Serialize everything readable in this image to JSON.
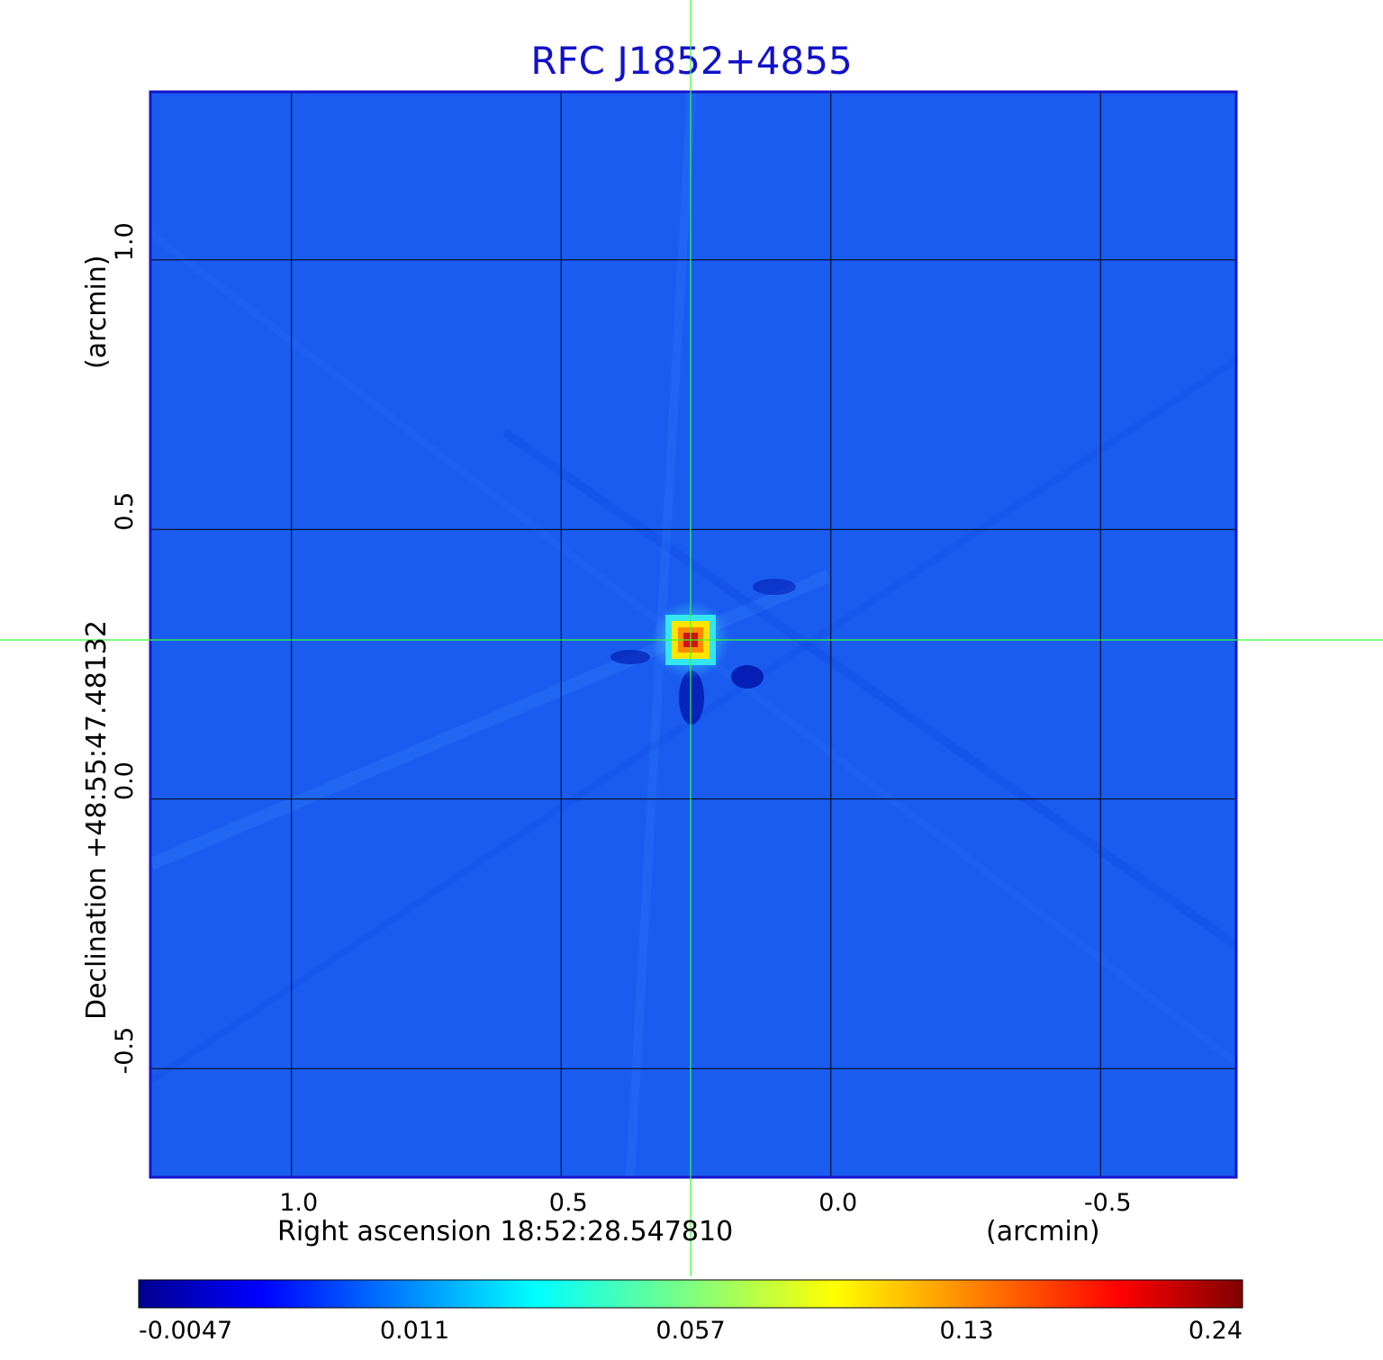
{
  "chart_data": {
    "type": "heatmap",
    "title": "RFC J1852+4855",
    "xlabel": "Right ascension  18:52:28.547810",
    "xunit": "(arcmin)",
    "ylabel": "Declination  +48:55:47.48132",
    "yunit": "(arcmin)",
    "xlim": [
      1.26,
      -0.75
    ],
    "ylim": [
      -0.7,
      1.31
    ],
    "x_ticks": [
      1.0,
      0.5,
      0.0,
      -0.5
    ],
    "x_tick_labels": [
      "1.0",
      "0.5",
      "0.0",
      "-0.5"
    ],
    "y_ticks": [
      1.0,
      0.5,
      0.0,
      -0.5
    ],
    "y_tick_labels": [
      "1.0",
      "0.5",
      "0.0",
      "-0.5"
    ],
    "grid": true,
    "crosshair": {
      "x": 0.26,
      "y": 0.295
    },
    "source_peak": {
      "x": 0.26,
      "y": 0.295,
      "value": 0.24
    },
    "background_value": 0.0,
    "colormap": "jet",
    "colorbar": {
      "ticks": [
        -0.0047,
        0.011,
        0.057,
        0.13,
        0.24
      ],
      "tick_labels": [
        "-0.0047",
        "0.011",
        "0.057",
        "0.13",
        "0.24"
      ],
      "placement": "bottom"
    },
    "colors": {
      "background": "#1a5cf0",
      "frame": "#1515cc",
      "title": "#1111cc",
      "crosshair": "#33ff33",
      "grid": "#000000"
    }
  }
}
